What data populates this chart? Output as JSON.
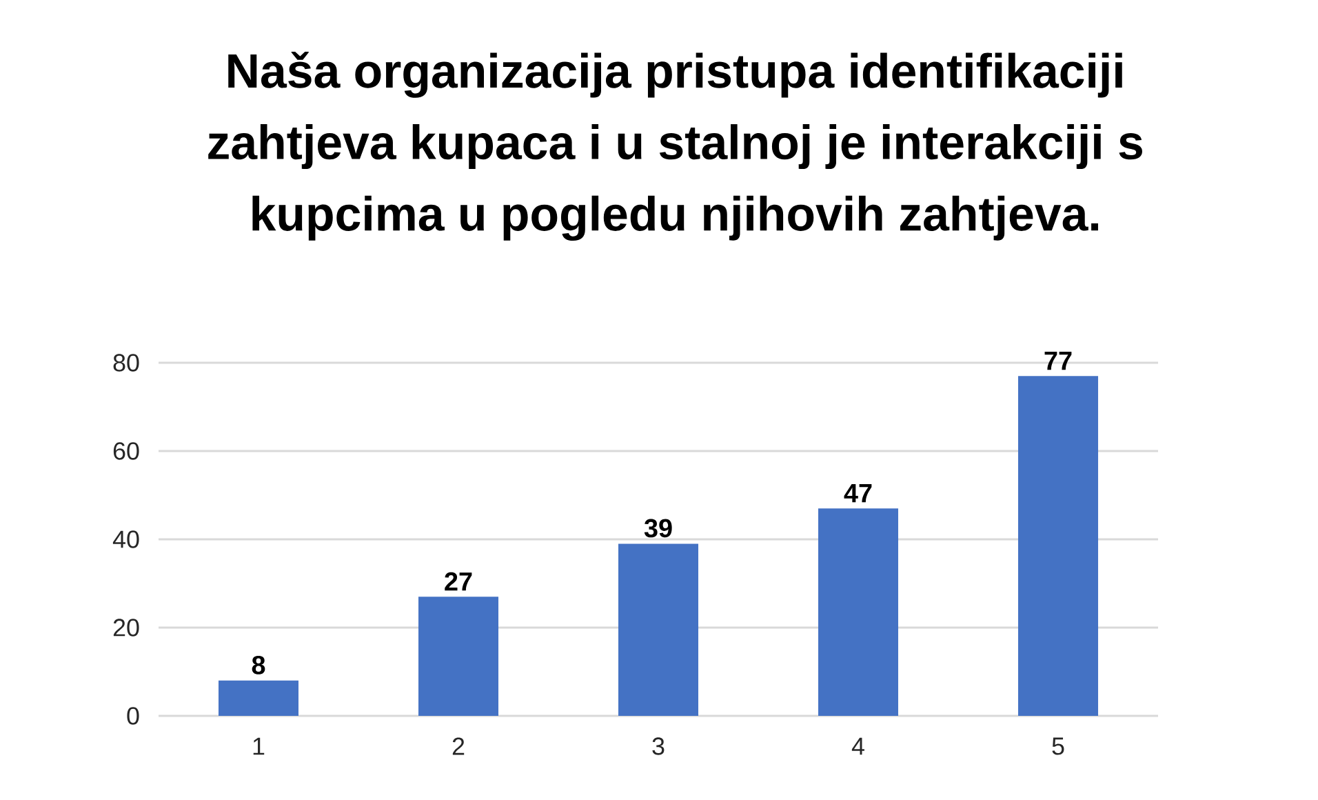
{
  "chart_data": {
    "type": "bar",
    "title": "Naša organizacija pristupa identifikaciji zahtjeva kupaca i u stalnoj je interakciji s kupcima u pogledu njihovih zahtjeva.",
    "categories": [
      "1",
      "2",
      "3",
      "4",
      "5"
    ],
    "values": [
      8,
      27,
      39,
      47,
      77
    ],
    "color": "#4472c4",
    "ylim": [
      0,
      80
    ],
    "yticks": [
      0,
      20,
      40,
      60,
      80
    ],
    "grid": "y",
    "data_labels": true
  }
}
